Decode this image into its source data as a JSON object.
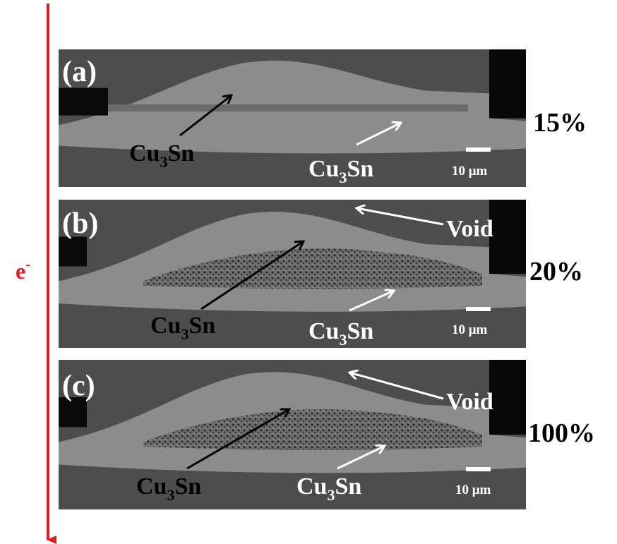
{
  "electron_label": {
    "base": "e",
    "sup": "-"
  },
  "panels": [
    {
      "label": "(a)",
      "current_density": "15%",
      "phase_labels": [
        {
          "base": "Cu",
          "sub": "3",
          "rest": "Sn"
        },
        {
          "base": "Cu",
          "sub": "3",
          "rest": "Sn"
        }
      ],
      "scale_bar": "10 μm"
    },
    {
      "label": "(b)",
      "current_density": "20%",
      "void": "Void",
      "phase_labels": [
        {
          "base": "Cu",
          "sub": "3",
          "rest": "Sn"
        },
        {
          "base": "Cu",
          "sub": "3",
          "rest": "Sn"
        }
      ],
      "scale_bar": "10 μm"
    },
    {
      "label": "(c)",
      "current_density": "100%",
      "void": "Void",
      "phase_labels": [
        {
          "base": "Cu",
          "sub": "3",
          "rest": "Sn"
        },
        {
          "base": "Cu",
          "sub": "3",
          "rest": "Sn"
        }
      ],
      "scale_bar": "10 μm"
    }
  ]
}
